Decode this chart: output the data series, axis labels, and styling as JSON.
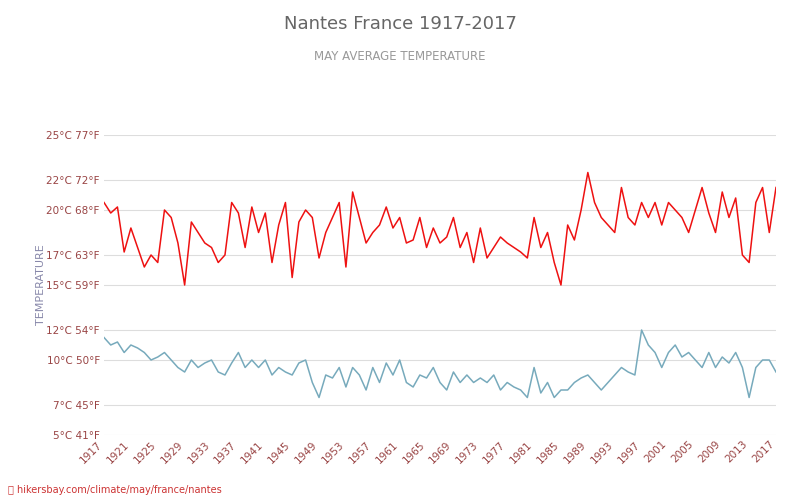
{
  "title": "Nantes France 1917-2017",
  "subtitle": "MAY AVERAGE TEMPERATURE",
  "ylabel": "TEMPERATURE",
  "title_color": "#666666",
  "subtitle_color": "#999999",
  "ylabel_color": "#8888aa",
  "background_color": "#ffffff",
  "grid_color": "#dddddd",
  "line_day_color": "#ee1111",
  "line_night_color": "#77aabc",
  "watermark_color": "#cc3333",
  "watermark_text": "📍 hikersbay.com/climate/may/france/nantes",
  "yticks_c": [
    5,
    7,
    10,
    12,
    15,
    17,
    20,
    22,
    25
  ],
  "yticks_f": [
    41,
    45,
    50,
    54,
    59,
    63,
    68,
    72,
    77
  ],
  "years": [
    1917,
    1918,
    1919,
    1920,
    1921,
    1922,
    1923,
    1924,
    1925,
    1926,
    1927,
    1928,
    1929,
    1930,
    1931,
    1932,
    1933,
    1934,
    1935,
    1936,
    1937,
    1938,
    1939,
    1940,
    1941,
    1942,
    1943,
    1944,
    1945,
    1946,
    1947,
    1948,
    1949,
    1950,
    1951,
    1952,
    1953,
    1954,
    1955,
    1956,
    1957,
    1958,
    1959,
    1960,
    1961,
    1962,
    1963,
    1964,
    1965,
    1966,
    1967,
    1968,
    1969,
    1970,
    1971,
    1972,
    1973,
    1974,
    1975,
    1976,
    1977,
    1978,
    1979,
    1980,
    1981,
    1982,
    1983,
    1984,
    1985,
    1986,
    1987,
    1988,
    1989,
    1990,
    1991,
    1992,
    1993,
    1994,
    1995,
    1996,
    1997,
    1998,
    1999,
    2000,
    2001,
    2002,
    2003,
    2004,
    2005,
    2006,
    2007,
    2008,
    2009,
    2010,
    2011,
    2012,
    2013,
    2014,
    2015,
    2016,
    2017
  ],
  "day_temps": [
    20.5,
    19.8,
    20.2,
    17.2,
    18.8,
    17.5,
    16.2,
    17.0,
    16.5,
    20.0,
    19.5,
    17.8,
    15.0,
    19.2,
    18.5,
    17.8,
    17.5,
    16.5,
    17.0,
    20.5,
    19.8,
    17.5,
    20.2,
    18.5,
    19.8,
    16.5,
    19.0,
    20.5,
    15.5,
    19.2,
    20.0,
    19.5,
    16.8,
    18.5,
    19.5,
    20.5,
    16.2,
    21.2,
    19.5,
    17.8,
    18.5,
    19.0,
    20.2,
    18.8,
    19.5,
    17.8,
    18.0,
    19.5,
    17.5,
    18.8,
    17.8,
    18.2,
    19.5,
    17.5,
    18.5,
    16.5,
    18.8,
    16.8,
    17.5,
    18.2,
    17.8,
    17.5,
    17.2,
    16.8,
    19.5,
    17.5,
    18.5,
    16.5,
    15.0,
    19.0,
    18.0,
    20.0,
    22.5,
    20.5,
    19.5,
    19.0,
    18.5,
    21.5,
    19.5,
    19.0,
    20.5,
    19.5,
    20.5,
    19.0,
    20.5,
    20.0,
    19.5,
    18.5,
    20.0,
    21.5,
    19.8,
    18.5,
    21.2,
    19.5,
    20.8,
    17.0,
    16.5,
    20.5,
    21.5,
    18.5,
    21.5
  ],
  "night_temps": [
    11.5,
    11.0,
    11.2,
    10.5,
    11.0,
    10.8,
    10.5,
    10.0,
    10.2,
    10.5,
    10.0,
    9.5,
    9.2,
    10.0,
    9.5,
    9.8,
    10.0,
    9.2,
    9.0,
    9.8,
    10.5,
    9.5,
    10.0,
    9.5,
    10.0,
    9.0,
    9.5,
    9.2,
    9.0,
    9.8,
    10.0,
    8.5,
    7.5,
    9.0,
    8.8,
    9.5,
    8.2,
    9.5,
    9.0,
    8.0,
    9.5,
    8.5,
    9.8,
    9.0,
    10.0,
    8.5,
    8.2,
    9.0,
    8.8,
    9.5,
    8.5,
    8.0,
    9.2,
    8.5,
    9.0,
    8.5,
    8.8,
    8.5,
    9.0,
    8.0,
    8.5,
    8.2,
    8.0,
    7.5,
    9.5,
    7.8,
    8.5,
    7.5,
    8.0,
    8.0,
    8.5,
    8.8,
    9.0,
    8.5,
    8.0,
    8.5,
    9.0,
    9.5,
    9.2,
    9.0,
    12.0,
    11.0,
    10.5,
    9.5,
    10.5,
    11.0,
    10.2,
    10.5,
    10.0,
    9.5,
    10.5,
    9.5,
    10.2,
    9.8,
    10.5,
    9.5,
    7.5,
    9.5,
    10.0,
    10.0,
    9.2
  ],
  "ylim": [
    5,
    25
  ],
  "xlim_start": 1917,
  "xlim_end": 2017
}
